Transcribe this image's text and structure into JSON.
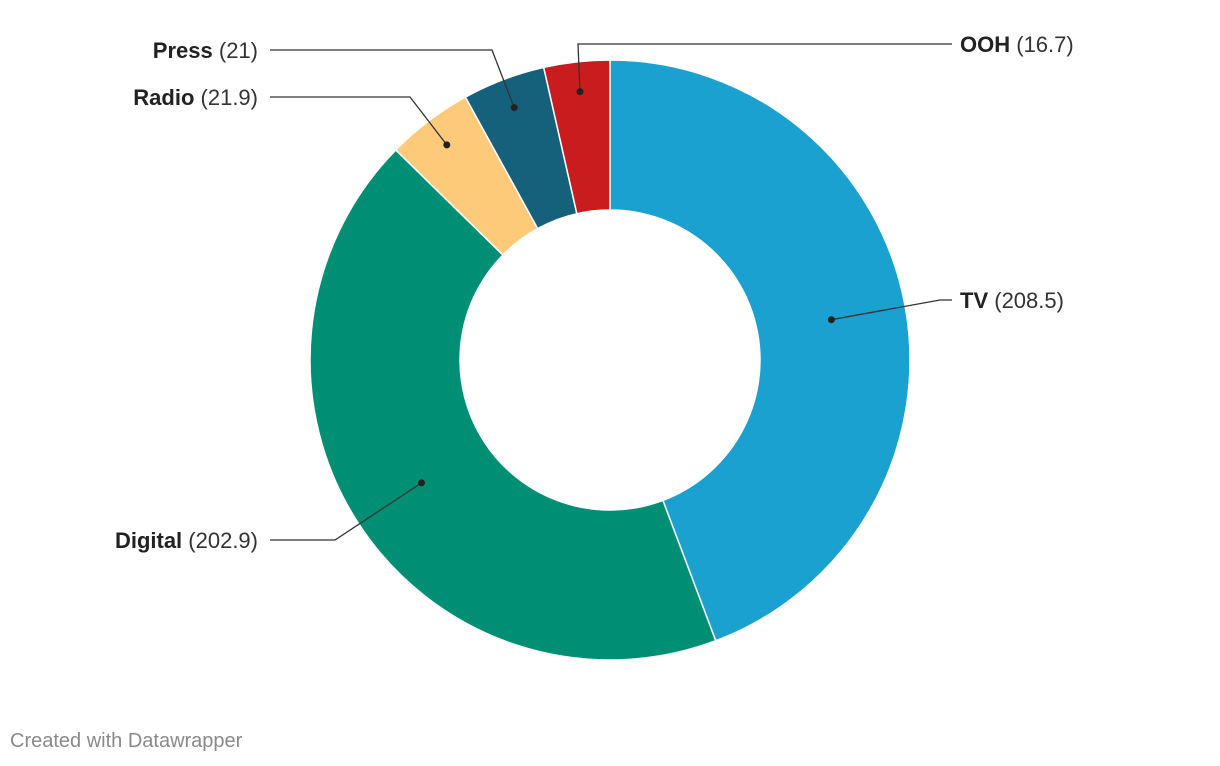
{
  "chart_data": {
    "type": "pie",
    "variant": "donut",
    "title": "",
    "slices": [
      {
        "label": "TV",
        "value": 208.5,
        "color": "#1aa1cf"
      },
      {
        "label": "Digital",
        "value": 202.9,
        "color": "#008f74"
      },
      {
        "label": "Radio",
        "value": 21.9,
        "color": "#fdca7a"
      },
      {
        "label": "Press",
        "value": 21,
        "color": "#15617b"
      },
      {
        "label": "OOH",
        "value": 16.7,
        "color": "#c81c1e"
      }
    ]
  },
  "footer": {
    "credit": "Created with Datawrapper"
  }
}
